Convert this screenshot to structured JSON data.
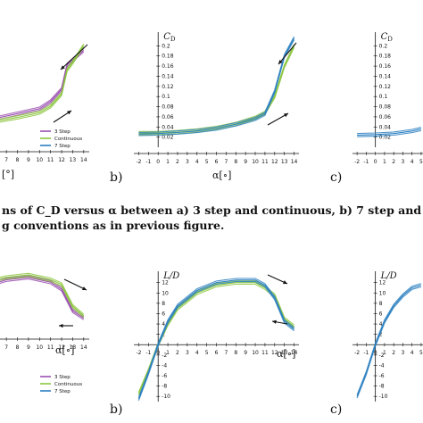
{
  "caption": {
    "line1": "ns of C_D versus α between a) 3 step and continuous, b) 7 step and continu",
    "line2": "g conventions as in previous figure."
  },
  "colors": {
    "three_step": "#9a4fb0",
    "continuous": "#8cc63f",
    "seven_step": "#2a7fc1",
    "arrow": "#111111"
  },
  "chart_data": [
    {
      "id": "top-a",
      "type": "line",
      "panel": "",
      "ylabel": "",
      "xlabel": "[°]",
      "x_ticks": [
        7,
        8,
        9,
        10,
        11,
        12,
        13,
        14
      ],
      "y_ticks": [],
      "legend": [
        "3 Step",
        "Continuous",
        "7 Step"
      ],
      "series": [
        {
          "name": "3 Step",
          "color": "three_step",
          "x": [
            5,
            8,
            10,
            11,
            12,
            12.5,
            13,
            14
          ],
          "y": [
            0.045,
            0.06,
            0.07,
            0.085,
            0.11,
            0.16,
            0.17,
            0.19
          ]
        },
        {
          "name": "Continuous",
          "color": "continuous",
          "x": [
            5,
            8,
            10,
            11,
            12,
            12.5,
            13,
            14
          ],
          "y": [
            0.04,
            0.052,
            0.062,
            0.075,
            0.1,
            0.15,
            0.165,
            0.2
          ]
        }
      ]
    },
    {
      "id": "top-b",
      "type": "line",
      "panel": "b)",
      "ylabel": "C_D",
      "xlabel": "α[∘]",
      "x_ticks": [
        -2,
        -1,
        0,
        1,
        2,
        3,
        4,
        5,
        6,
        7,
        8,
        9,
        10,
        11,
        12,
        13,
        14
      ],
      "y_ticks": [
        0.02,
        0.04,
        0.06,
        0.08,
        0.1,
        0.12,
        0.14,
        0.16,
        0.18,
        0.2
      ],
      "series": [
        {
          "name": "Continuous",
          "color": "continuous",
          "x": [
            -2,
            0,
            2,
            4,
            6,
            8,
            10,
            11,
            12,
            13,
            14
          ],
          "y": [
            0.028,
            0.028,
            0.03,
            0.033,
            0.038,
            0.046,
            0.058,
            0.068,
            0.1,
            0.16,
            0.2
          ]
        },
        {
          "name": "7 Step",
          "color": "seven_step",
          "x": [
            -2,
            0,
            2,
            4,
            6,
            8,
            10,
            11,
            12,
            13,
            14
          ],
          "y": [
            0.026,
            0.027,
            0.029,
            0.032,
            0.037,
            0.045,
            0.056,
            0.066,
            0.11,
            0.18,
            0.215
          ]
        }
      ]
    },
    {
      "id": "top-c",
      "type": "line",
      "panel": "c)",
      "ylabel": "C_D",
      "xlabel": "",
      "x_ticks": [
        -2,
        -1,
        0,
        1,
        2,
        3,
        4,
        5
      ],
      "y_ticks": [
        0.02,
        0.04,
        0.06,
        0.08,
        0.1,
        0.12,
        0.14,
        0.16,
        0.18,
        0.2
      ],
      "series": [
        {
          "name": "7 Step",
          "color": "seven_step",
          "x": [
            -2,
            0,
            2,
            4,
            5
          ],
          "y": [
            0.024,
            0.025,
            0.027,
            0.032,
            0.036
          ]
        }
      ]
    },
    {
      "id": "bottom-a",
      "type": "line",
      "panel": "",
      "ylabel": "",
      "xlabel": "α[∘]",
      "x_ticks": [
        7,
        8,
        9,
        10,
        11,
        12,
        13,
        14
      ],
      "y_ticks": [],
      "legend": [
        "3 Step",
        "Continuous",
        "7 Step"
      ],
      "series": [
        {
          "name": "3 Step",
          "color": "three_step",
          "x": [
            5,
            7,
            9,
            11,
            12,
            13,
            14
          ],
          "y": [
            10,
            11.5,
            12,
            11,
            9.5,
            5,
            3.5
          ]
        },
        {
          "name": "Continuous",
          "color": "continuous",
          "x": [
            5,
            7,
            9,
            11,
            12,
            13,
            14
          ],
          "y": [
            11,
            12,
            12.5,
            11.5,
            10.5,
            6,
            4
          ]
        }
      ]
    },
    {
      "id": "bottom-b",
      "type": "line",
      "panel": "b)",
      "ylabel": "L/D",
      "xlabel": "α[∘]",
      "x_ticks": [
        -2,
        -1,
        0,
        1,
        2,
        3,
        4,
        5,
        6,
        7,
        8,
        9,
        10,
        11,
        12,
        13,
        14
      ],
      "y_ticks": [
        -10,
        -8,
        -6,
        -4,
        -2,
        2,
        4,
        6,
        8,
        10,
        12
      ],
      "series": [
        {
          "name": "Continuous",
          "color": "continuous",
          "x": [
            -2,
            -1,
            0,
            1,
            2,
            4,
            6,
            8,
            10,
            11,
            12,
            13,
            14
          ],
          "y": [
            -9.5,
            -5,
            0,
            4,
            7,
            10,
            11.5,
            12,
            12,
            11,
            9.5,
            5,
            3.5
          ]
        },
        {
          "name": "7 Step",
          "color": "seven_step",
          "x": [
            -2,
            -1,
            0,
            1,
            2,
            4,
            6,
            8,
            10,
            11,
            12,
            13,
            14
          ],
          "y": [
            -10.5,
            -5.5,
            0,
            4.5,
            7.5,
            10.5,
            12,
            12.5,
            12.5,
            11.5,
            9,
            4.5,
            3
          ]
        }
      ]
    },
    {
      "id": "bottom-c",
      "type": "line",
      "panel": "c)",
      "ylabel": "L/D",
      "xlabel": "",
      "x_ticks": [
        -2,
        -1,
        0,
        1,
        2,
        3,
        4,
        5
      ],
      "y_ticks": [
        -10,
        -8,
        -6,
        -4,
        -2,
        2,
        4,
        6,
        8,
        10,
        12
      ],
      "series": [
        {
          "name": "7 Step",
          "color": "seven_step",
          "x": [
            -2,
            -1,
            0,
            1,
            2,
            3,
            4,
            5
          ],
          "y": [
            -10,
            -5.5,
            0,
            4.5,
            7.5,
            9.5,
            11,
            11.5
          ]
        }
      ]
    }
  ]
}
